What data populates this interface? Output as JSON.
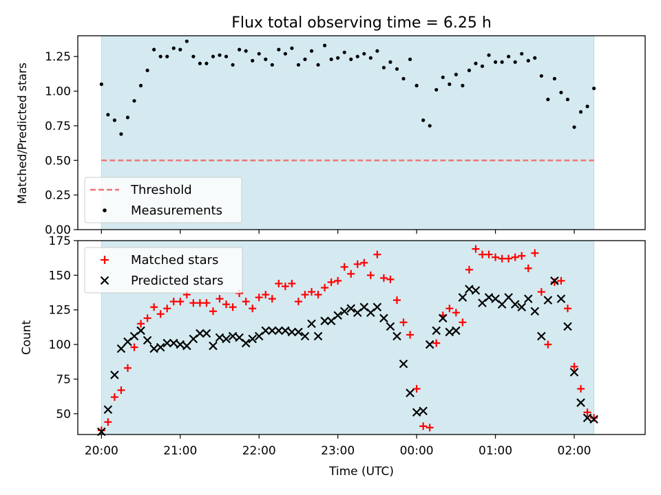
{
  "title": "Flux total observing time = 6.25 h",
  "xlabel": "Time (UTC)",
  "x_ticks": [
    "20:00",
    "21:00",
    "22:00",
    "23:00",
    "00:00",
    "01:00",
    "02:00"
  ],
  "colors": {
    "shade": "#d4eaf0",
    "threshold": "#f07070",
    "measurements": "#000000",
    "matched": "#ff0000",
    "predicted": "#000000"
  },
  "chart_data": [
    {
      "type": "scatter",
      "ylabel": "Matched/Predicted stars",
      "ylim": [
        0,
        1.4
      ],
      "yticks": [
        "0.00",
        "0.25",
        "0.50",
        "0.75",
        "1.00",
        "1.25"
      ],
      "xlim": [
        "19:42",
        "02:54"
      ],
      "shaded_span": [
        "20:00",
        "02:15"
      ],
      "legend": {
        "placement": "lower-left",
        "entries": [
          "Threshold",
          "Measurements"
        ]
      },
      "threshold": 0.5,
      "series": [
        {
          "name": "Measurements",
          "marker": "dot",
          "x": [
            "20:00",
            "20:05",
            "20:10",
            "20:15",
            "20:20",
            "20:25",
            "20:30",
            "20:35",
            "20:40",
            "20:45",
            "20:50",
            "20:55",
            "21:00",
            "21:05",
            "21:10",
            "21:15",
            "21:20",
            "21:25",
            "21:30",
            "21:35",
            "21:40",
            "21:45",
            "21:50",
            "21:55",
            "22:00",
            "22:05",
            "22:10",
            "22:15",
            "22:20",
            "22:25",
            "22:30",
            "22:35",
            "22:40",
            "22:45",
            "22:50",
            "22:55",
            "23:00",
            "23:05",
            "23:10",
            "23:15",
            "23:20",
            "23:25",
            "23:30",
            "23:35",
            "23:40",
            "23:45",
            "23:50",
            "23:55",
            "00:00",
            "00:05",
            "00:10",
            "00:15",
            "00:20",
            "00:25",
            "00:30",
            "00:35",
            "00:40",
            "00:45",
            "00:50",
            "00:55",
            "01:00",
            "01:05",
            "01:10",
            "01:15",
            "01:20",
            "01:25",
            "01:30",
            "01:35",
            "01:40",
            "01:45",
            "01:50",
            "01:55",
            "02:00",
            "02:05",
            "02:10",
            "02:15"
          ],
          "y": [
            1.05,
            0.83,
            0.79,
            0.69,
            0.81,
            0.93,
            1.04,
            1.15,
            1.3,
            1.25,
            1.25,
            1.31,
            1.3,
            1.36,
            1.25,
            1.2,
            1.2,
            1.25,
            1.26,
            1.25,
            1.19,
            1.3,
            1.29,
            1.22,
            1.27,
            1.23,
            1.19,
            1.3,
            1.27,
            1.31,
            1.19,
            1.23,
            1.29,
            1.19,
            1.33,
            1.23,
            1.24,
            1.28,
            1.23,
            1.25,
            1.27,
            1.24,
            1.29,
            1.17,
            1.21,
            1.16,
            1.09,
            1.23,
            1.04,
            0.79,
            0.75,
            1.01,
            1.1,
            1.05,
            1.12,
            1.04,
            1.15,
            1.2,
            1.18,
            1.26,
            1.21,
            1.21,
            1.25,
            1.21,
            1.27,
            1.22,
            1.24,
            1.11,
            0.94,
            1.09,
            0.99,
            0.94,
            0.74,
            0.85,
            0.89,
            1.02
          ]
        }
      ]
    },
    {
      "type": "scatter",
      "ylabel": "Count",
      "ylim": [
        35,
        175
      ],
      "yticks": [
        "50",
        "75",
        "100",
        "125",
        "150",
        "175"
      ],
      "xlim": [
        "19:42",
        "02:54"
      ],
      "shaded_span": [
        "20:00",
        "02:15"
      ],
      "legend": {
        "placement": "upper-left",
        "entries": [
          "Matched stars",
          "Predicted stars"
        ]
      },
      "x": [
        "20:00",
        "20:05",
        "20:10",
        "20:15",
        "20:20",
        "20:25",
        "20:30",
        "20:35",
        "20:40",
        "20:45",
        "20:50",
        "20:55",
        "21:00",
        "21:05",
        "21:10",
        "21:15",
        "21:20",
        "21:25",
        "21:30",
        "21:35",
        "21:40",
        "21:45",
        "21:50",
        "21:55",
        "22:00",
        "22:05",
        "22:10",
        "22:15",
        "22:20",
        "22:25",
        "22:30",
        "22:35",
        "22:40",
        "22:45",
        "22:50",
        "22:55",
        "23:00",
        "23:05",
        "23:10",
        "23:15",
        "23:20",
        "23:25",
        "23:30",
        "23:35",
        "23:40",
        "23:45",
        "23:50",
        "23:55",
        "00:00",
        "00:05",
        "00:10",
        "00:15",
        "00:20",
        "00:25",
        "00:30",
        "00:35",
        "00:40",
        "00:45",
        "00:50",
        "00:55",
        "01:00",
        "01:05",
        "01:10",
        "01:15",
        "01:20",
        "01:25",
        "01:30",
        "01:35",
        "01:40",
        "01:45",
        "01:50",
        "01:55",
        "02:00",
        "02:05",
        "02:10",
        "02:15"
      ],
      "series": [
        {
          "name": "Matched stars",
          "marker": "plus",
          "values": [
            38,
            44,
            62,
            67,
            83,
            98,
            115,
            119,
            127,
            122,
            126,
            131,
            131,
            136,
            130,
            130,
            130,
            124,
            133,
            129,
            127,
            137,
            131,
            126,
            134,
            136,
            133,
            144,
            142,
            144,
            131,
            136,
            138,
            136,
            141,
            145,
            146,
            156,
            151,
            158,
            159,
            150,
            165,
            148,
            147,
            132,
            116,
            107,
            68,
            41,
            40,
            101,
            121,
            126,
            123,
            116,
            154,
            169,
            165,
            165,
            163,
            162,
            162,
            163,
            164,
            155,
            166,
            138,
            100,
            145,
            146,
            126,
            84,
            68,
            51,
            47
          ]
        },
        {
          "name": "Predicted stars",
          "marker": "x",
          "values": [
            37,
            53,
            78,
            97,
            102,
            106,
            110,
            103,
            97,
            98,
            101,
            101,
            100,
            99,
            104,
            108,
            108,
            99,
            105,
            104,
            106,
            105,
            101,
            104,
            106,
            110,
            110,
            110,
            110,
            109,
            109,
            106,
            115,
            106,
            117,
            117,
            121,
            124,
            126,
            123,
            127,
            123,
            127,
            119,
            113,
            106,
            86,
            65,
            51,
            52,
            100,
            110,
            119,
            109,
            110,
            134,
            140,
            139,
            130,
            134,
            133,
            129,
            134,
            129,
            127,
            133,
            124,
            106,
            132,
            146,
            133,
            113,
            80,
            58,
            47,
            46
          ]
        }
      ]
    }
  ]
}
